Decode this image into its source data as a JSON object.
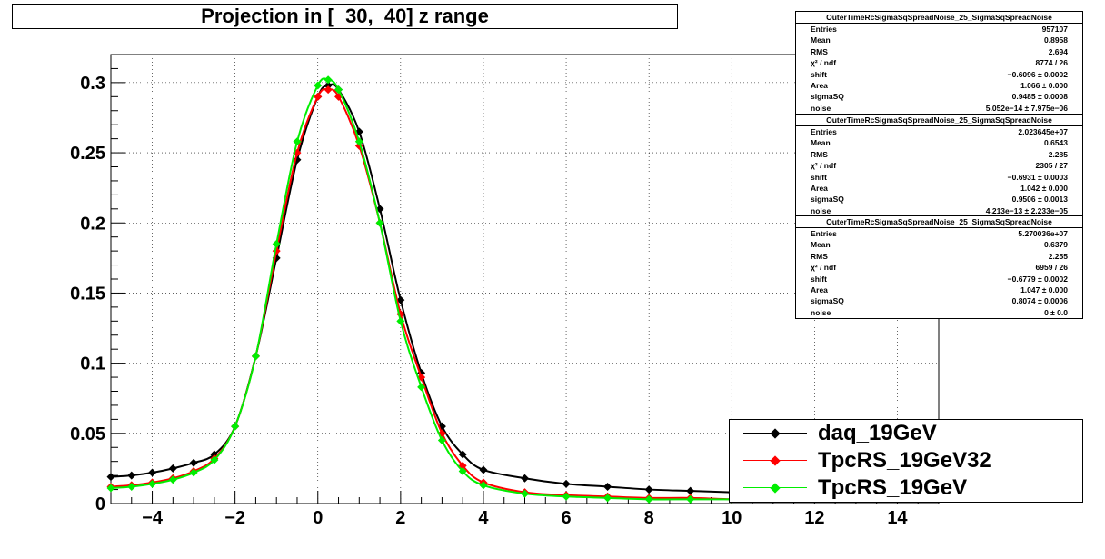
{
  "chart_data": {
    "type": "scatter",
    "title": "Projection in [  30,  40] z range",
    "xlim": [
      -5,
      15
    ],
    "ylim": [
      0,
      0.32
    ],
    "x_ticks": [
      -4,
      -2,
      0,
      2,
      4,
      6,
      8,
      10,
      12,
      14
    ],
    "x_tick_labels": [
      "−4",
      "−2",
      "0",
      "2",
      "4",
      "6",
      "8",
      "10",
      "12",
      "14"
    ],
    "y_ticks": [
      0,
      0.05,
      0.1,
      0.15,
      0.2,
      0.25,
      0.3
    ],
    "y_tick_labels": [
      "0",
      "0.05",
      "0.1",
      "0.15",
      "0.2",
      "0.25",
      "0.3"
    ],
    "grid": true,
    "legend_placement": "bottom-right",
    "series": [
      {
        "name": "daq_19GeV",
        "color": "#000000",
        "x": [
          -5.0,
          -4.5,
          -4.0,
          -3.5,
          -3.0,
          -2.5,
          -2.0,
          -1.5,
          -1.0,
          -0.5,
          0.0,
          0.25,
          0.5,
          1.0,
          1.5,
          2.0,
          2.5,
          3.0,
          3.5,
          4.0,
          5.0,
          6.0,
          7.0,
          8.0,
          9.0,
          10.0
        ],
        "y": [
          0.019,
          0.02,
          0.022,
          0.025,
          0.029,
          0.035,
          0.055,
          0.105,
          0.175,
          0.245,
          0.29,
          0.298,
          0.295,
          0.265,
          0.21,
          0.145,
          0.093,
          0.055,
          0.035,
          0.024,
          0.018,
          0.014,
          0.012,
          0.01,
          0.009,
          0.008
        ]
      },
      {
        "name": "TpcRS_19GeV32",
        "color": "#ff0000",
        "x": [
          -5.0,
          -4.5,
          -4.0,
          -3.5,
          -3.0,
          -2.5,
          -2.0,
          -1.5,
          -1.0,
          -0.5,
          0.0,
          0.25,
          0.5,
          1.0,
          1.5,
          2.0,
          2.5,
          3.0,
          3.5,
          4.0,
          5.0,
          6.0,
          7.0,
          8.0,
          9.0,
          10.0
        ],
        "y": [
          0.012,
          0.013,
          0.015,
          0.018,
          0.023,
          0.032,
          0.055,
          0.105,
          0.18,
          0.25,
          0.29,
          0.295,
          0.29,
          0.255,
          0.2,
          0.135,
          0.09,
          0.05,
          0.027,
          0.015,
          0.008,
          0.006,
          0.005,
          0.004,
          0.004,
          0.003
        ]
      },
      {
        "name": "TpcRS_19GeV",
        "color": "#00ee00",
        "x": [
          -5.0,
          -4.5,
          -4.0,
          -3.5,
          -3.0,
          -2.5,
          -2.0,
          -1.5,
          -1.0,
          -0.5,
          0.0,
          0.25,
          0.5,
          1.0,
          1.5,
          2.0,
          2.5,
          3.0,
          3.5,
          4.0,
          5.0,
          6.0,
          7.0,
          8.0,
          9.0,
          10.0
        ],
        "y": [
          0.011,
          0.012,
          0.014,
          0.017,
          0.022,
          0.031,
          0.055,
          0.105,
          0.185,
          0.258,
          0.298,
          0.302,
          0.295,
          0.258,
          0.2,
          0.13,
          0.083,
          0.045,
          0.023,
          0.013,
          0.007,
          0.005,
          0.004,
          0.003,
          0.003,
          0.003
        ]
      }
    ]
  },
  "stats_boxes": [
    {
      "title": "OuterTimeRcSigmaSqSpreadNoise_25_SigmaSqSpreadNoise",
      "rows": [
        {
          "label": "Entries",
          "value": "957107"
        },
        {
          "label": "Mean",
          "value": "0.8958"
        },
        {
          "label": "RMS",
          "value": "2.694"
        },
        {
          "label": "χ² / ndf",
          "value": "8774 / 26"
        },
        {
          "label": "shift",
          "value": "−0.6096 ± 0.0002"
        },
        {
          "label": "Area",
          "value": "1.066 ± 0.000"
        },
        {
          "label": "sigmaSQ",
          "value": "0.9485 ± 0.0008"
        },
        {
          "label": "noise",
          "value": "5.052e−14 ± 7.975e−06"
        }
      ]
    },
    {
      "title": "OuterTimeRcSigmaSqSpreadNoise_25_SigmaSqSpreadNoise",
      "rows": [
        {
          "label": "Entries",
          "value": "2.023645e+07"
        },
        {
          "label": "Mean",
          "value": "0.6543"
        },
        {
          "label": "RMS",
          "value": "2.285"
        },
        {
          "label": "χ² / ndf",
          "value": "2305 / 27"
        },
        {
          "label": "shift",
          "value": "−0.6931 ± 0.0003"
        },
        {
          "label": "Area",
          "value": "1.042 ± 0.000"
        },
        {
          "label": "sigmaSQ",
          "value": "0.9506 ± 0.0013"
        },
        {
          "label": "noise",
          "value": "4.213e−13 ± 2.233e−05"
        }
      ]
    },
    {
      "title": "OuterTimeRcSigmaSqSpreadNoise_25_SigmaSqSpreadNoise",
      "rows": [
        {
          "label": "Entries",
          "value": "5.270036e+07"
        },
        {
          "label": "Mean",
          "value": "0.6379"
        },
        {
          "label": "RMS",
          "value": "2.255"
        },
        {
          "label": "χ² / ndf",
          "value": "6959 / 26"
        },
        {
          "label": "shift",
          "value": "−0.6779 ± 0.0002"
        },
        {
          "label": "Area",
          "value": "1.047 ± 0.000"
        },
        {
          "label": "sigmaSQ",
          "value": "0.8074 ± 0.0006"
        },
        {
          "label": "noise",
          "value": "0 ± 0.0"
        }
      ]
    }
  ],
  "legend": [
    {
      "label": "daq_19GeV",
      "color": "#000000"
    },
    {
      "label": "TpcRS_19GeV32",
      "color": "#ff0000"
    },
    {
      "label": "TpcRS_19GeV",
      "color": "#00ee00"
    }
  ]
}
